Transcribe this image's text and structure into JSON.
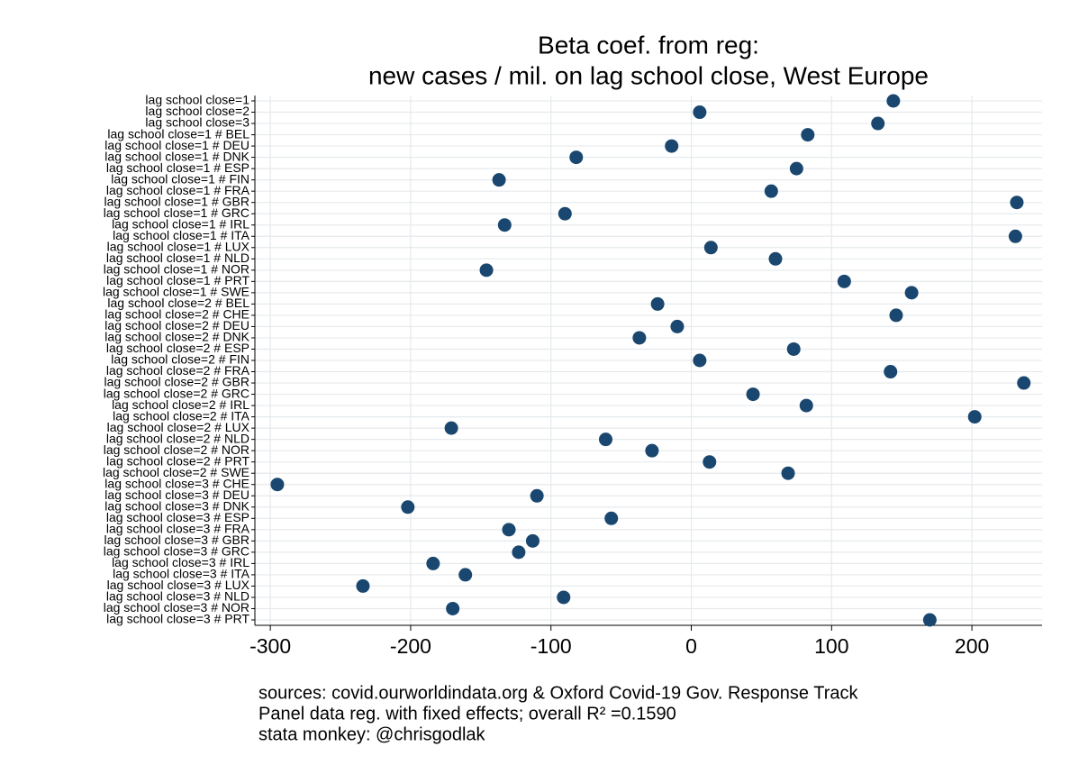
{
  "chart_data": {
    "type": "dot",
    "title": [
      "Beta coef. from reg:",
      "new cases / mil. on lag school close, West Europe"
    ],
    "categories": [
      "lag school close=1",
      "lag school close=2",
      "lag school close=3",
      "lag school close=1 # BEL",
      "lag school close=1 # DEU",
      "lag school close=1 # DNK",
      "lag school close=1 # ESP",
      "lag school close=1 # FIN",
      "lag school close=1 # FRA",
      "lag school close=1 # GBR",
      "lag school close=1 # GRC",
      "lag school close=1 # IRL",
      "lag school close=1 # ITA",
      "lag school close=1 # LUX",
      "lag school close=1 # NLD",
      "lag school close=1 # NOR",
      "lag school close=1 # PRT",
      "lag school close=1 # SWE",
      "lag school close=2 # BEL",
      "lag school close=2 # CHE",
      "lag school close=2 # DEU",
      "lag school close=2 # DNK",
      "lag school close=2 # ESP",
      "lag school close=2 # FIN",
      "lag school close=2 # FRA",
      "lag school close=2 # GBR",
      "lag school close=2 # GRC",
      "lag school close=2 # IRL",
      "lag school close=2 # ITA",
      "lag school close=2 # LUX",
      "lag school close=2 # NLD",
      "lag school close=2 # NOR",
      "lag school close=2 # PRT",
      "lag school close=2 # SWE",
      "lag school close=3 # CHE",
      "lag school close=3 # DEU",
      "lag school close=3 # DNK",
      "lag school close=3 # ESP",
      "lag school close=3 # FRA",
      "lag school close=3 # GBR",
      "lag school close=3 # GRC",
      "lag school close=3 # IRL",
      "lag school close=3 # ITA",
      "lag school close=3 # LUX",
      "lag school close=3 # NLD",
      "lag school close=3 # NOR",
      "lag school close=3 # PRT"
    ],
    "values": [
      144,
      6,
      133,
      83,
      -14,
      -82,
      75,
      -137,
      57,
      232,
      -90,
      -133,
      231,
      14,
      60,
      -146,
      109,
      157,
      -24,
      146,
      -10,
      -37,
      73,
      6,
      142,
      237,
      44,
      82,
      202,
      -171,
      -61,
      -28,
      13,
      69,
      -295,
      -110,
      -202,
      -57,
      -130,
      -113,
      -123,
      -184,
      -161,
      -234,
      -91,
      -170,
      170
    ],
    "color": "#1a476f",
    "xlim": [
      -311,
      250
    ],
    "xticks": [
      -300,
      -200,
      -100,
      0,
      100,
      200
    ],
    "grid": true,
    "notes": [
      "sources: covid.ourworldindata.org & Oxford Covid-19 Gov. Response Track",
      "Panel data reg. with fixed effects; overall R² =0.1590",
      "stata monkey: @chrisgodlak"
    ]
  }
}
